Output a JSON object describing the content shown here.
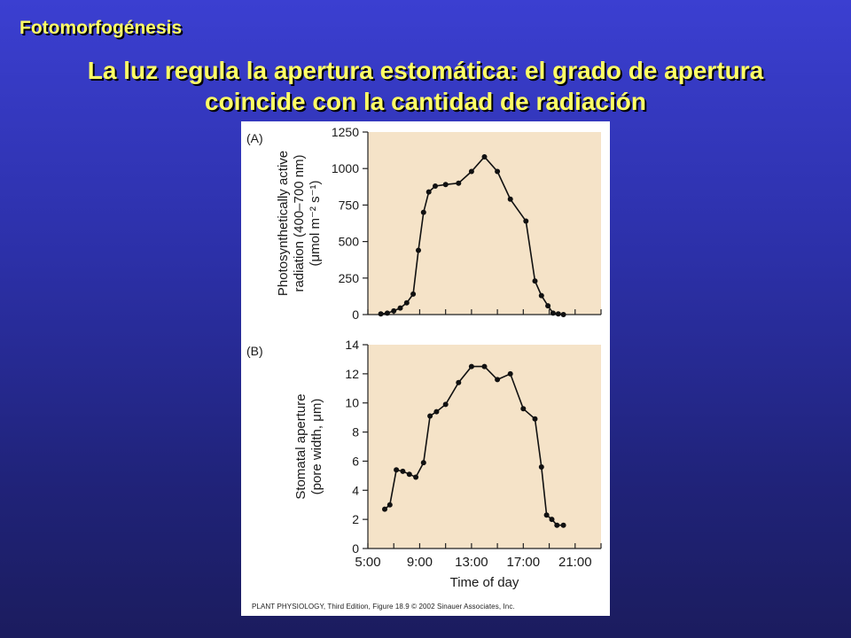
{
  "slide": {
    "kicker": "Fotomorfogénesis",
    "title_line1": "La luz regula la apertura estomática: el grado de apertura",
    "title_line2": "coincide con la cantidad de radiación"
  },
  "figure": {
    "credit": "PLANT PHYSIOLOGY, Third Edition, Figure 18.9 © 2002 Sinauer Associates, Inc."
  },
  "chart_data": [
    {
      "type": "line",
      "panel_label": "(A)",
      "ylabel_lines": [
        "Photosynthetically active",
        "radiation (400–700 nm)",
        "(μmol m⁻² s⁻¹)"
      ],
      "xlabel": "",
      "ylim": [
        0,
        1250
      ],
      "xlim": [
        5,
        23
      ],
      "yticks": [
        0,
        250,
        500,
        750,
        1000,
        1250
      ],
      "grid": false,
      "background": "#f5e3c8",
      "series": [
        {
          "x": [
            6.0,
            6.5,
            7.0,
            7.5,
            8.0,
            8.5,
            8.9,
            9.3,
            9.7,
            10.2,
            11.0,
            12.0,
            13.0,
            14.0,
            15.0,
            16.0,
            17.2,
            17.9,
            18.4,
            18.9,
            19.3,
            19.7,
            20.1
          ],
          "y": [
            5,
            10,
            25,
            45,
            80,
            140,
            440,
            700,
            840,
            880,
            890,
            900,
            980,
            1080,
            980,
            790,
            640,
            230,
            130,
            60,
            10,
            5,
            0
          ]
        }
      ]
    },
    {
      "type": "line",
      "panel_label": "(B)",
      "ylabel_lines": [
        "Stomatal aperture",
        "(pore width, μm)"
      ],
      "xlabel": "Time of day",
      "ylim": [
        0,
        14
      ],
      "xlim": [
        5,
        23
      ],
      "yticks": [
        0,
        2,
        4,
        6,
        8,
        10,
        12,
        14
      ],
      "xtick_labels": [
        "5:00",
        "9:00",
        "13:00",
        "17:00",
        "21:00"
      ],
      "xtick_values": [
        5,
        9,
        13,
        17,
        21
      ],
      "grid": false,
      "background": "#f5e3c8",
      "series": [
        {
          "x": [
            6.3,
            6.7,
            7.2,
            7.7,
            8.2,
            8.7,
            9.3,
            9.8,
            10.3,
            11.0,
            12.0,
            13.0,
            14.0,
            15.0,
            16.0,
            17.0,
            17.9,
            18.4,
            18.8,
            19.2,
            19.6,
            20.1
          ],
          "y": [
            2.7,
            3.0,
            5.4,
            5.3,
            5.1,
            4.9,
            5.9,
            9.1,
            9.4,
            9.9,
            11.4,
            12.5,
            12.5,
            11.6,
            12.0,
            9.6,
            8.9,
            5.6,
            2.3,
            2.0,
            1.6,
            1.6
          ]
        }
      ]
    }
  ]
}
